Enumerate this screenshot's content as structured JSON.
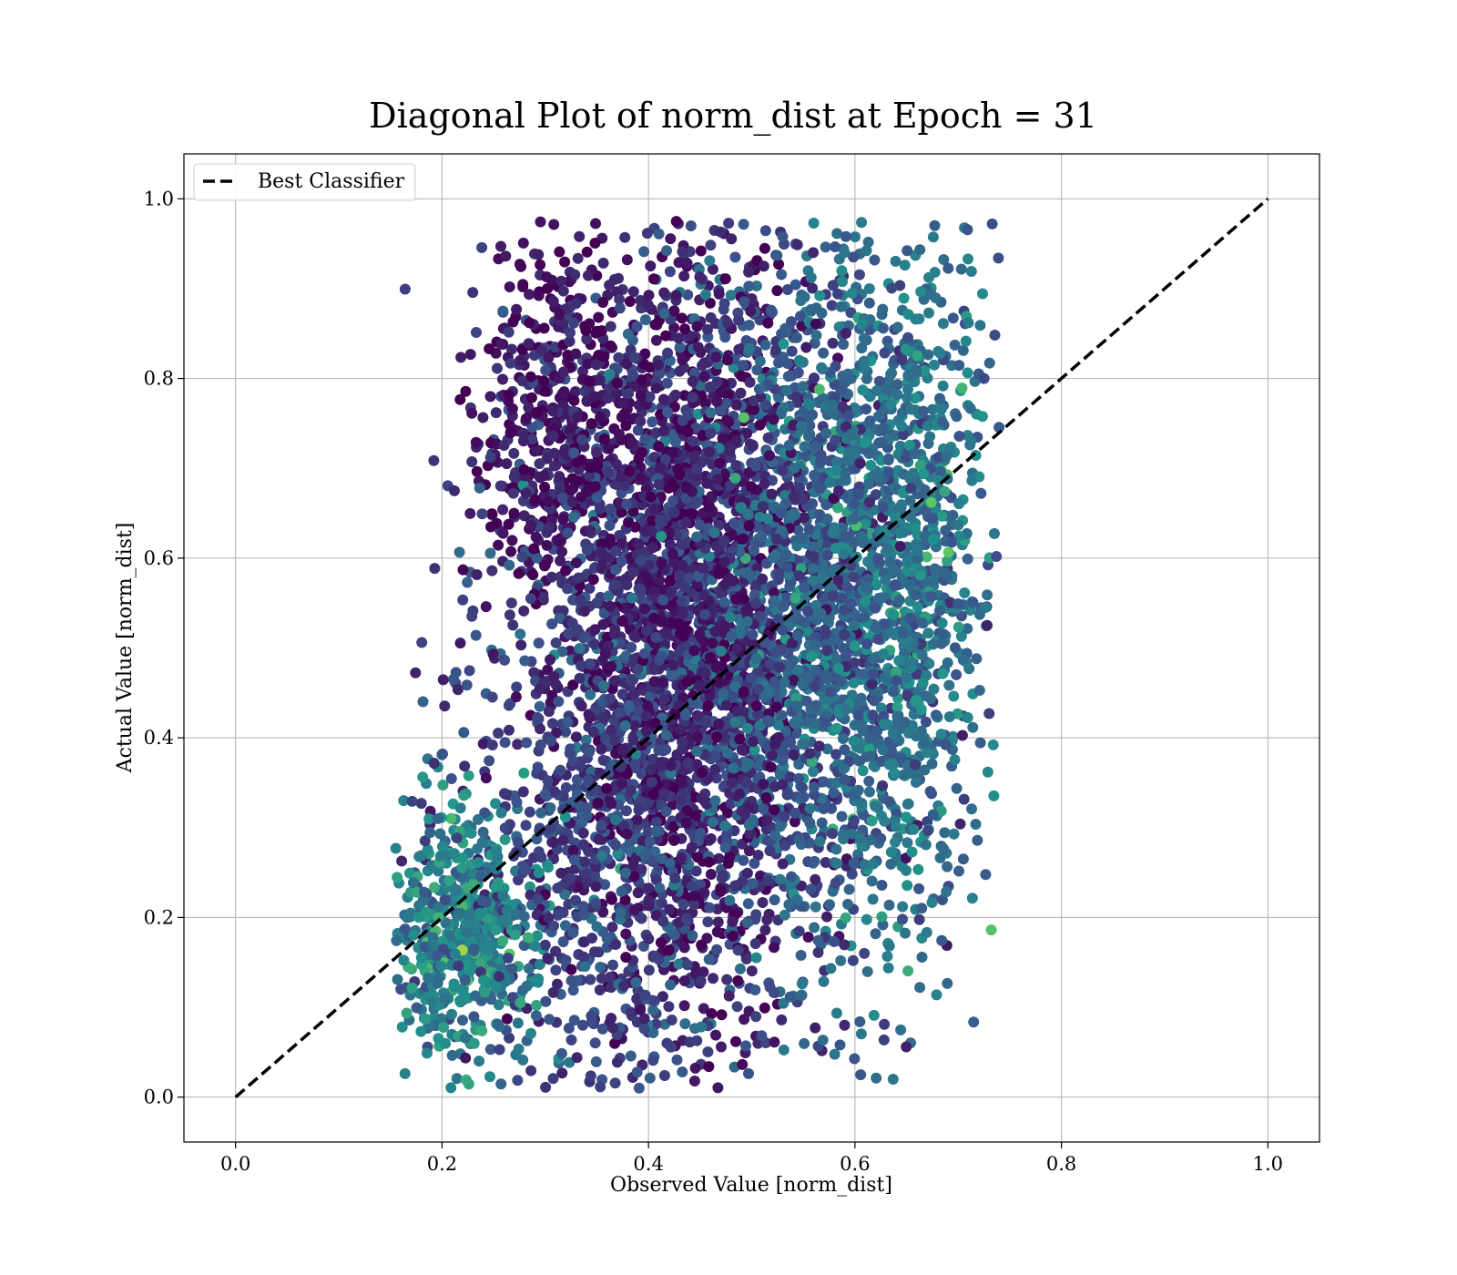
{
  "chart_data": {
    "type": "scatter",
    "title": "Diagonal Plot of norm_dist at Epoch = 31",
    "xlabel": "Observed Value [norm_dist]",
    "ylabel": "Actual Value [norm_dist]",
    "xlim": [
      -0.05,
      1.05
    ],
    "ylim": [
      -0.05,
      1.05
    ],
    "x_ticks": [
      "0.0",
      "0.2",
      "0.4",
      "0.6",
      "0.8",
      "1.0"
    ],
    "y_ticks": [
      "0.0",
      "0.2",
      "0.4",
      "0.6",
      "0.8",
      "1.0"
    ],
    "grid": true,
    "legend": {
      "placement": "top-left",
      "entries": [
        "Best Classifier"
      ]
    },
    "colormap": "viridis",
    "colors": {
      "purple": "#440154",
      "blue": "#3b528b",
      "teal": "#21918c",
      "green": "#5ec962",
      "line": "#000000"
    },
    "reference_line": {
      "name": "Best Classifier",
      "style": "dashed",
      "x": [
        0,
        1
      ],
      "y": [
        0,
        1
      ]
    },
    "series": [
      {
        "density_clusters": [
          {
            "cx": 0.44,
            "cy": 0.55,
            "sx": 0.055,
            "sy": 0.22,
            "weight": 0.3,
            "color_level": 0.1
          },
          {
            "cx": 0.36,
            "cy": 0.35,
            "sx": 0.075,
            "sy": 0.2,
            "weight": 0.18,
            "color_level": 0.2
          },
          {
            "cx": 0.55,
            "cy": 0.55,
            "sx": 0.06,
            "sy": 0.2,
            "weight": 0.22,
            "color_level": 0.3
          },
          {
            "cx": 0.64,
            "cy": 0.58,
            "sx": 0.045,
            "sy": 0.2,
            "weight": 0.15,
            "color_level": 0.38
          },
          {
            "cx": 0.22,
            "cy": 0.18,
            "sx": 0.035,
            "sy": 0.07,
            "weight": 0.08,
            "color_level": 0.45
          },
          {
            "cx": 0.31,
            "cy": 0.76,
            "sx": 0.04,
            "sy": 0.1,
            "weight": 0.07,
            "color_level": 0.06
          }
        ],
        "outliers": [
          [
            0.259,
            0.875
          ],
          [
            0.212,
            0.675
          ],
          [
            0.247,
            0.712
          ],
          [
            0.333,
            0.958
          ],
          [
            0.391,
            0.01
          ],
          [
            0.733,
            0.972
          ],
          [
            0.739,
            0.934
          ],
          [
            0.705,
            0.265
          ],
          [
            0.59,
            0.08
          ],
          [
            0.62,
            0.182
          ],
          [
            0.646,
            0.198
          ],
          [
            0.18,
            0.327
          ],
          [
            0.196,
            0.31
          ],
          [
            0.16,
            0.12
          ],
          [
            0.725,
            0.8
          ],
          [
            0.728,
            0.525
          ],
          [
            0.73,
            0.427
          ],
          [
            0.47,
            0.963
          ],
          [
            0.53,
            0.958
          ]
        ]
      }
    ]
  }
}
